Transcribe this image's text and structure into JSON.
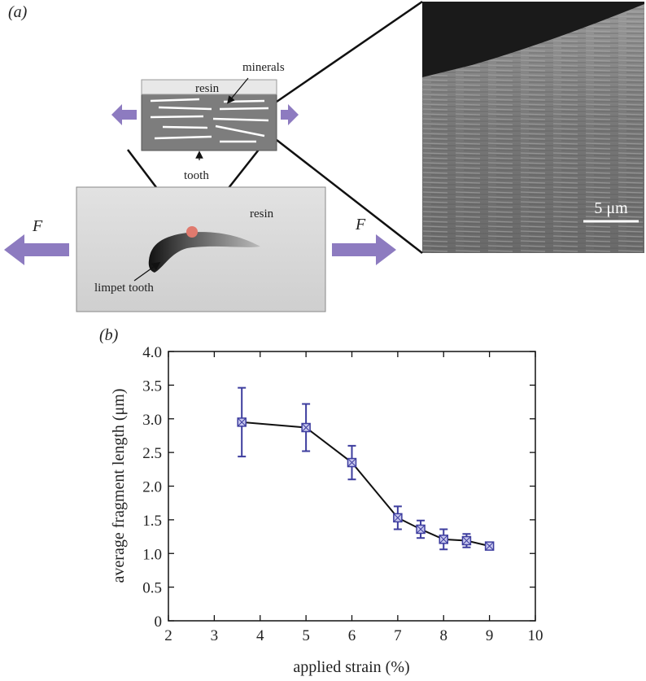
{
  "panel_a": {
    "label": "(a)",
    "minerals": "minerals",
    "resin_small": "resin",
    "tooth": "tooth",
    "resin_big": "resin",
    "force_left": "F",
    "force_right": "F",
    "limpet_tooth": "limpet tooth",
    "scale_bar": "5 μm"
  },
  "chart_data": {
    "type": "line",
    "panel_label": "(b)",
    "x_label": "applied strain (%)",
    "y_label": "average fragment length (μm)",
    "x": [
      3.6,
      5,
      6,
      7,
      7.5,
      8,
      8.5,
      9
    ],
    "values": [
      2.95,
      2.87,
      2.35,
      1.53,
      1.36,
      1.21,
      1.19,
      1.11
    ],
    "errors": [
      0.51,
      0.35,
      0.25,
      0.17,
      0.13,
      0.15,
      0.1,
      0.04
    ],
    "color": "#3d3d9e",
    "line_color": "#111111",
    "xlim": [
      2,
      10
    ],
    "xticks": [
      2,
      3,
      4,
      5,
      6,
      7,
      8,
      9,
      10
    ],
    "ylim": [
      0,
      4
    ],
    "yticks": [
      0,
      0.5,
      {
        "value": 1,
        "label": "1.0"
      },
      1.5,
      {
        "value": 2,
        "label": "2.0"
      },
      2.5,
      {
        "value": 3,
        "label": "3.0"
      },
      3.5,
      {
        "value": 4,
        "label": "4.0"
      }
    ]
  }
}
